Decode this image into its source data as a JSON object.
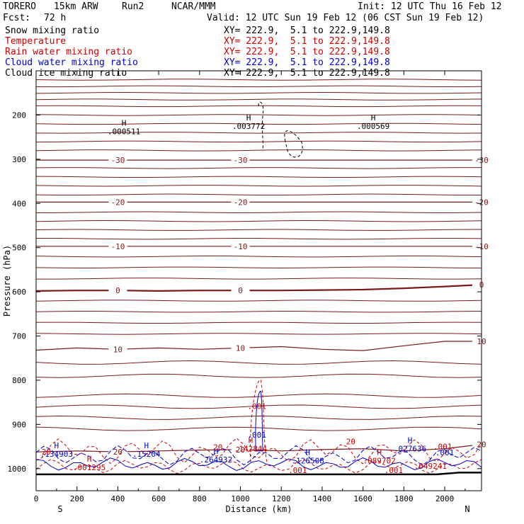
{
  "header": {
    "model": "TORERO",
    "resolution": "15km ARW",
    "run": "Run2",
    "org": "NCAR/MMM",
    "init_label": "Init: 12 UTC Thu 16 Feb 12",
    "fcst_label": "Fcst:",
    "fcst_value": "72 h",
    "valid_label": "Valid: 12 UTC Sun 19 Feb 12 (06 CST Sun 19 Feb 12)"
  },
  "legend": [
    {
      "name": "Snow mixing ratio",
      "xy": "XY= 222.9,  5.1 to 222.9,149.8",
      "color": "#000000"
    },
    {
      "name": "Temperature",
      "xy": "XY= 222.9,  5.1 to 222.9,149.8",
      "color": "#cc0000"
    },
    {
      "name": "Rain water mixing ratio",
      "xy": "XY= 222.9,  5.1 to 222.9,149.8",
      "color": "#cc0000"
    },
    {
      "name": "Cloud water mixing ratio",
      "xy": "XY= 222.9,  5.1 to 222.9,149.8",
      "color": "#0000cc"
    },
    {
      "name": "Cloud ice mixing ratio",
      "xy": "XY= 222.9,  5.1 to 222.9,149.8",
      "color": "#000000"
    }
  ],
  "chart_data": {
    "type": "contour",
    "xlabel": "Distance (km)",
    "ylabel": "Pressure (hPa)",
    "xlim": [
      0,
      2180
    ],
    "ylim": [
      1050,
      100
    ],
    "xticks": [
      0,
      200,
      400,
      600,
      800,
      1000,
      1200,
      1400,
      1600,
      1800,
      2000
    ],
    "yticks": [
      200,
      300,
      400,
      500,
      600,
      700,
      800,
      900,
      1000
    ],
    "left_end_label": "S",
    "right_end_label": "N",
    "temperature_isotherms": [
      {
        "label": "-30",
        "p": [
          302,
          302,
          302,
          302,
          302,
          302,
          302,
          302,
          302,
          302,
          302,
          302
        ]
      },
      {
        "label": "-20",
        "p": [
          397,
          397,
          397,
          397,
          397,
          397,
          397,
          397,
          397,
          397,
          397,
          397
        ]
      },
      {
        "label": "-10",
        "p": [
          497,
          497,
          497,
          497,
          497,
          497,
          497,
          497,
          497,
          497,
          497,
          497
        ]
      },
      {
        "label": "0",
        "p": [
          598,
          597,
          597,
          598,
          597,
          597,
          597,
          596,
          595,
          592,
          588,
          584
        ]
      },
      {
        "label": "10",
        "p": [
          732,
          727,
          730,
          727,
          730,
          727,
          724,
          730,
          733,
          722,
          712,
          712
        ]
      },
      {
        "label": "20",
        "p": [
          962,
          960,
          962,
          960,
          958,
          957,
          960,
          957,
          955,
          960,
          955,
          945
        ]
      }
    ],
    "isotherm_x": [
      0,
      200,
      400,
      600,
      800,
      1000,
      1200,
      1400,
      1600,
      1800,
      2000,
      2180
    ],
    "unlabeled_isotherm_levels": [
      120,
      135,
      150,
      165,
      180,
      200,
      220,
      240,
      260,
      280,
      320,
      340,
      360,
      380,
      420,
      440,
      460,
      480,
      520,
      545,
      570,
      620,
      645,
      670,
      695,
      760,
      790,
      835,
      860,
      885,
      910
    ],
    "max_labels": [
      {
        "mark": "H",
        "value": ".000511",
        "x": 430,
        "p": 240
      },
      {
        "mark": "H",
        "value": ".003772",
        "x": 1040,
        "p": 228
      },
      {
        "mark": "H",
        "value": ".000569",
        "x": 1650,
        "p": 228
      },
      {
        "mark": "H",
        "value": ".134903",
        "x": 100,
        "p": 970
      },
      {
        "mark": "H",
        "value": ".15204",
        "x": 540,
        "p": 970
      },
      {
        "mark": "H",
        "value": ".264932",
        "x": 880,
        "p": 983
      },
      {
        "mark": "H",
        "value": ".142844",
        "x": 1050,
        "p": 958
      },
      {
        "mark": "H",
        "value": ".126508",
        "x": 1330,
        "p": 985
      },
      {
        "mark": "H",
        "value": ".089702",
        "x": 1680,
        "p": 985
      },
      {
        "mark": "H",
        "value": ".027636",
        "x": 1830,
        "p": 958
      },
      {
        "mark": "H",
        "value": ".001295",
        "x": 260,
        "p": 1000
      }
    ],
    "contour_labels": [
      {
        "text": ".001",
        "x": 1080,
        "p": 865,
        "color": "#cc0000"
      },
      {
        "text": ".001",
        "x": 1080,
        "p": 930,
        "color": "#0000cc"
      },
      {
        "text": "20",
        "x": 890,
        "p": 958,
        "color": "#cc0000"
      },
      {
        "text": "20",
        "x": 1540,
        "p": 945,
        "color": "#cc0000"
      },
      {
        "text": "20",
        "x": 50,
        "p": 968,
        "color": "#cc0000"
      },
      {
        "text": ".001",
        "x": 1990,
        "p": 956,
        "color": "#cc0000"
      },
      {
        "text": ".001",
        "x": 2000,
        "p": 970,
        "color": "#0000cc"
      },
      {
        "text": ".049241",
        "x": 1930,
        "p": 1000,
        "color": "#cc0000"
      },
      {
        "text": ".001",
        "x": 1280,
        "p": 1010,
        "color": "#cc0000"
      },
      {
        "text": ".001",
        "x": 1750,
        "p": 1010,
        "color": "#cc0000"
      }
    ]
  }
}
